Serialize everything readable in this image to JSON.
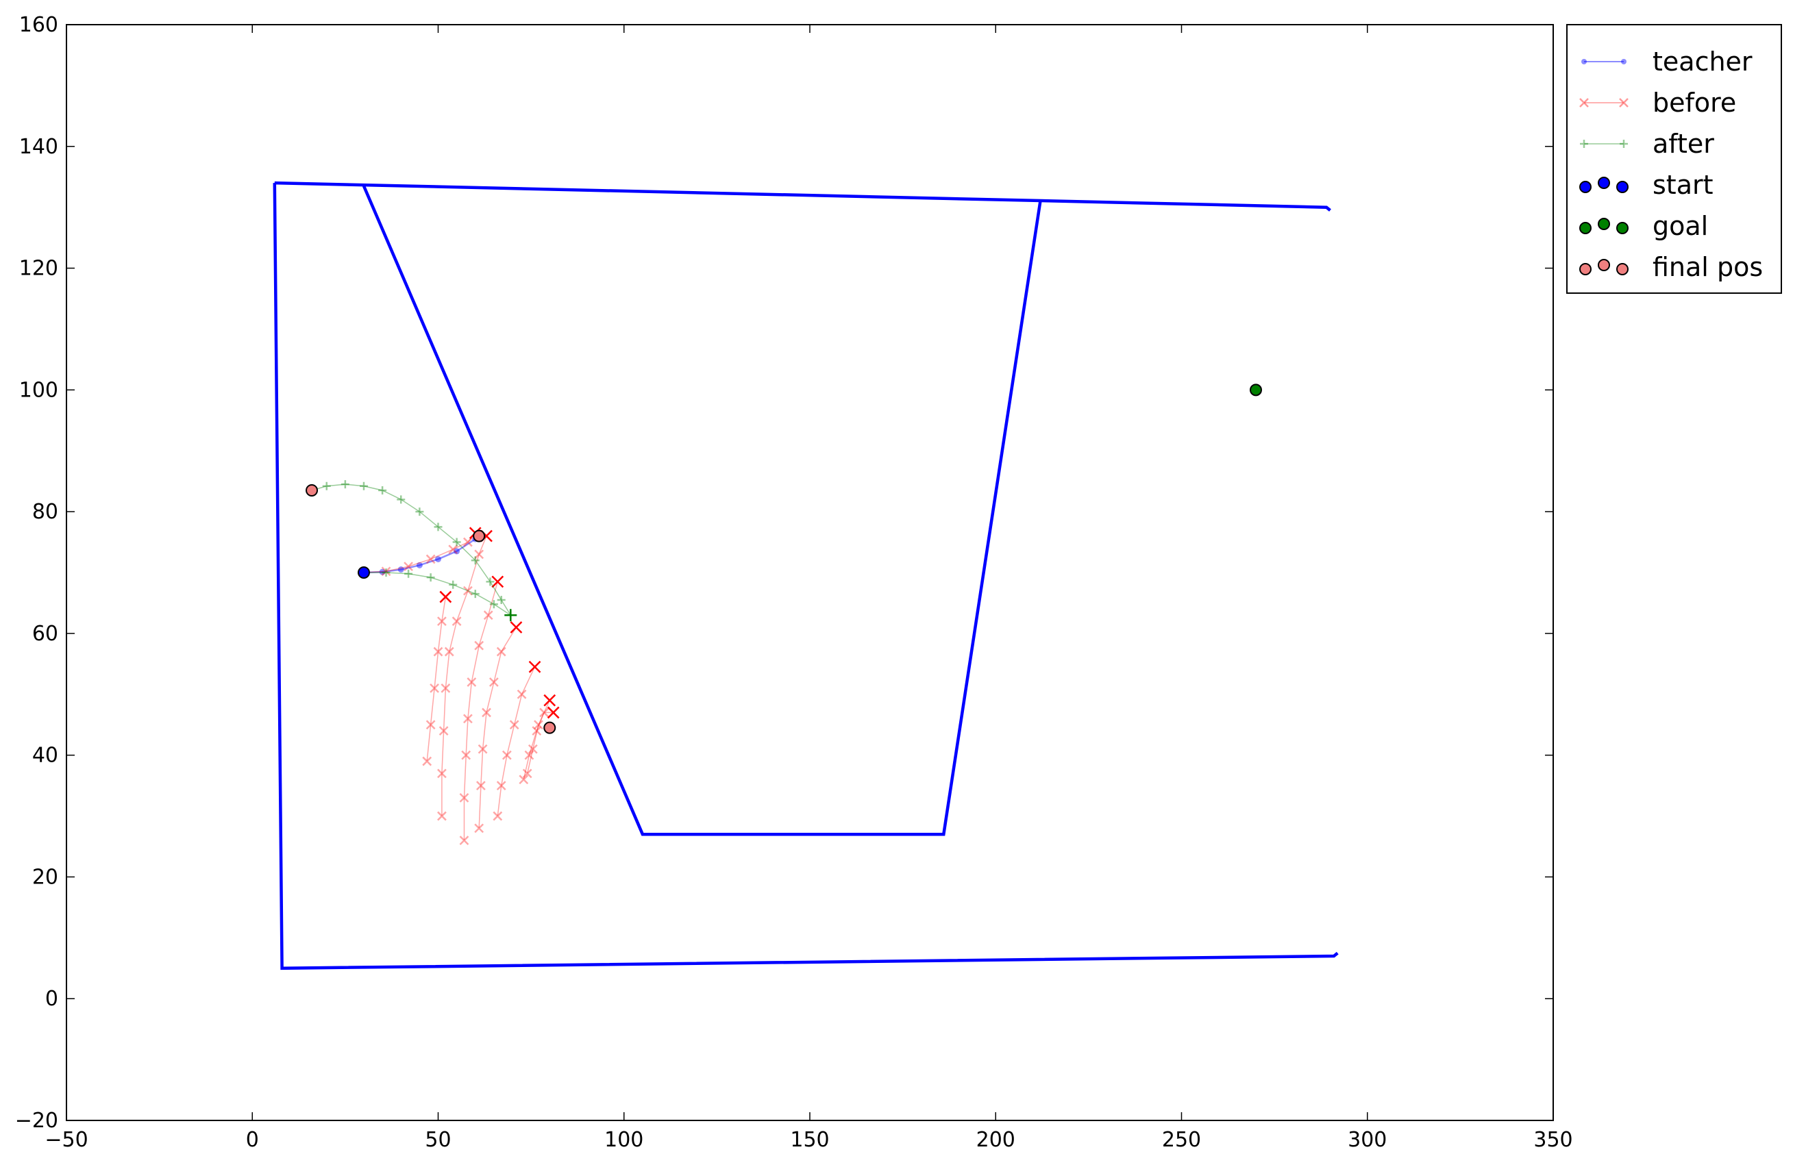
{
  "chart_data": {
    "type": "line",
    "title": "",
    "xlabel": "",
    "ylabel": "",
    "xlim": [
      -50,
      350
    ],
    "ylim": [
      -20,
      160
    ],
    "xticks": [
      -50,
      0,
      50,
      100,
      150,
      200,
      250,
      300,
      350
    ],
    "yticks": [
      -20,
      0,
      20,
      40,
      60,
      80,
      100,
      120,
      140,
      160
    ],
    "xtick_labels": [
      "−50",
      "0",
      "50",
      "100",
      "150",
      "200",
      "250",
      "300",
      "350"
    ],
    "ytick_labels": [
      "−20",
      "0",
      "20",
      "40",
      "60",
      "80",
      "100",
      "120",
      "140",
      "160"
    ],
    "grid": false,
    "legend_position": "outside-top-right",
    "walls": [
      [
        [
          6,
          134
        ],
        [
          8,
          5
        ],
        [
          291,
          7
        ],
        [
          292,
          7.5
        ]
      ],
      [
        [
          6,
          134
        ],
        [
          289,
          130
        ],
        [
          290,
          129.5
        ]
      ],
      [
        [
          30,
          133.5
        ],
        [
          105,
          27
        ],
        [
          186,
          27
        ],
        [
          212,
          131
        ]
      ]
    ],
    "series": [
      {
        "name": "teacher",
        "color": "#0000ff",
        "marker": "dot",
        "points": [
          [
            30,
            70
          ],
          [
            35,
            70.1
          ],
          [
            40,
            70.5
          ],
          [
            45,
            71.2
          ],
          [
            50,
            72.2
          ],
          [
            55,
            73.5
          ],
          [
            60,
            75.5
          ],
          [
            61,
            76
          ]
        ]
      },
      {
        "name": "before",
        "color": "#ff0000",
        "marker": "x",
        "trajectories": [
          [
            [
              30,
              70
            ],
            [
              36,
              70.2
            ],
            [
              42,
              71
            ],
            [
              48,
              72.2
            ],
            [
              54,
              73.8
            ],
            [
              58,
              75
            ],
            [
              60,
              76.5
            ]
          ],
          [
            [
              47,
              39
            ],
            [
              48,
              45
            ],
            [
              49,
              51
            ],
            [
              50,
              57
            ],
            [
              51,
              62
            ],
            [
              52,
              66
            ]
          ],
          [
            [
              51,
              30
            ],
            [
              51,
              37
            ],
            [
              51.5,
              44
            ],
            [
              52,
              51
            ],
            [
              53,
              57
            ],
            [
              55,
              62
            ],
            [
              58,
              67
            ],
            [
              61,
              73
            ],
            [
              63,
              76
            ]
          ],
          [
            [
              57,
              26
            ],
            [
              57,
              33
            ],
            [
              57.5,
              40
            ],
            [
              58,
              46
            ],
            [
              59,
              52
            ],
            [
              61,
              58
            ],
            [
              63.5,
              63
            ],
            [
              66,
              68.5
            ]
          ],
          [
            [
              61,
              28
            ],
            [
              61.5,
              35
            ],
            [
              62,
              41
            ],
            [
              63,
              47
            ],
            [
              65,
              52
            ],
            [
              67,
              57
            ],
            [
              71,
              61
            ]
          ],
          [
            [
              66,
              30
            ],
            [
              67,
              35
            ],
            [
              68.5,
              40
            ],
            [
              70.5,
              45
            ],
            [
              72.5,
              50
            ],
            [
              76,
              54.5
            ]
          ],
          [
            [
              73,
              36
            ],
            [
              74.5,
              40
            ],
            [
              76.5,
              44
            ],
            [
              78.5,
              47
            ],
            [
              81,
              47
            ]
          ],
          [
            [
              74,
              37
            ],
            [
              75.5,
              41
            ],
            [
              77,
              45
            ],
            [
              80,
              49
            ]
          ]
        ]
      },
      {
        "name": "after",
        "color": "#008000",
        "marker": "plus",
        "trajectories": [
          [
            [
              16,
              83.5
            ],
            [
              20,
              84.2
            ],
            [
              25,
              84.5
            ],
            [
              30,
              84.2
            ],
            [
              35,
              83.5
            ],
            [
              40,
              82
            ],
            [
              45,
              80
            ],
            [
              50,
              77.5
            ],
            [
              55,
              75
            ],
            [
              60,
              72
            ],
            [
              64,
              68.5
            ],
            [
              67,
              65.5
            ],
            [
              69.5,
              63
            ]
          ],
          [
            [
              30,
              70
            ],
            [
              36,
              70
            ],
            [
              42,
              69.8
            ],
            [
              48,
              69.2
            ],
            [
              54,
              68
            ],
            [
              60,
              66.5
            ],
            [
              65,
              64.8
            ],
            [
              69.5,
              63
            ]
          ]
        ],
        "end_marker": [
          69.5,
          63
        ]
      },
      {
        "name": "start",
        "color": "#0000ff",
        "marker": "circle",
        "points": [
          [
            30,
            70
          ]
        ]
      },
      {
        "name": "goal",
        "color": "#008000",
        "marker": "circle",
        "points": [
          [
            270,
            100
          ]
        ]
      },
      {
        "name": "final pos",
        "color": "#f08080",
        "marker": "circle",
        "points": [
          [
            16,
            83.5
          ],
          [
            61,
            76
          ],
          [
            80,
            44.5
          ]
        ]
      }
    ]
  }
}
